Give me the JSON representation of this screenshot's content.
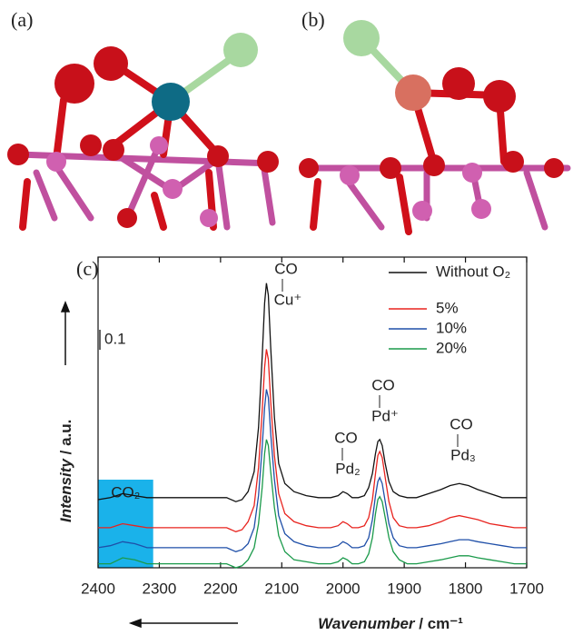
{
  "panels": {
    "a": {
      "label": "(a)"
    },
    "b": {
      "label": "(b)"
    }
  },
  "chart_data": {
    "type": "line",
    "panel_label": "(c)",
    "x_label": {
      "emphasis": "Wavenumber",
      "rest": " / cm⁻¹"
    },
    "y_label": {
      "emphasis": "Intensity",
      "rest": " / a.u."
    },
    "xlim": [
      2400,
      1700
    ],
    "xticks": [
      2400,
      2300,
      2200,
      2100,
      2000,
      1900,
      1800,
      1700
    ],
    "ylim": [
      0,
      1.55
    ],
    "scale_bar": 0.1,
    "highlight": {
      "label": "CO₂",
      "x": [
        2400,
        2310
      ],
      "color": "#1ab2ea"
    },
    "annotations": [
      {
        "top": "CO",
        "bottom": "Cu⁺"
      },
      {
        "top": "CO",
        "bottom": "Pd₂"
      },
      {
        "top": "CO",
        "bottom": "Pd⁺"
      },
      {
        "top": "CO",
        "bottom": "Pd₃"
      }
    ],
    "x": [
      2400,
      2380,
      2360,
      2340,
      2320,
      2300,
      2260,
      2220,
      2190,
      2175,
      2165,
      2155,
      2145,
      2138,
      2132,
      2128,
      2125,
      2122,
      2118,
      2112,
      2105,
      2095,
      2080,
      2060,
      2040,
      2020,
      2008,
      2000,
      1993,
      1985,
      1975,
      1965,
      1958,
      1952,
      1947,
      1943,
      1940,
      1936,
      1931,
      1925,
      1918,
      1908,
      1895,
      1880,
      1860,
      1840,
      1825,
      1810,
      1795,
      1780,
      1760,
      1740,
      1720,
      1700
    ],
    "series": [
      {
        "name": "Without O₂",
        "color": "#111111",
        "values": [
          0.34,
          0.35,
          0.37,
          0.36,
          0.35,
          0.35,
          0.35,
          0.35,
          0.35,
          0.33,
          0.34,
          0.38,
          0.48,
          0.7,
          1.05,
          1.32,
          1.42,
          1.36,
          1.1,
          0.75,
          0.52,
          0.42,
          0.38,
          0.36,
          0.35,
          0.35,
          0.36,
          0.38,
          0.37,
          0.35,
          0.35,
          0.36,
          0.4,
          0.47,
          0.57,
          0.63,
          0.64,
          0.61,
          0.52,
          0.43,
          0.38,
          0.36,
          0.35,
          0.35,
          0.37,
          0.39,
          0.41,
          0.42,
          0.41,
          0.39,
          0.37,
          0.35,
          0.35,
          0.35
        ]
      },
      {
        "name": "5%",
        "color": "#e8231e",
        "values": [
          0.2,
          0.2,
          0.22,
          0.21,
          0.2,
          0.2,
          0.2,
          0.2,
          0.2,
          0.18,
          0.19,
          0.23,
          0.31,
          0.5,
          0.78,
          1.0,
          1.09,
          1.04,
          0.83,
          0.56,
          0.37,
          0.27,
          0.23,
          0.21,
          0.2,
          0.2,
          0.21,
          0.23,
          0.22,
          0.2,
          0.2,
          0.21,
          0.25,
          0.34,
          0.47,
          0.56,
          0.58,
          0.55,
          0.45,
          0.33,
          0.25,
          0.21,
          0.2,
          0.2,
          0.21,
          0.23,
          0.25,
          0.26,
          0.25,
          0.24,
          0.22,
          0.21,
          0.2,
          0.2
        ]
      },
      {
        "name": "10%",
        "color": "#1f4fa8",
        "values": [
          0.1,
          0.11,
          0.13,
          0.12,
          0.1,
          0.1,
          0.1,
          0.1,
          0.1,
          0.08,
          0.09,
          0.12,
          0.2,
          0.36,
          0.6,
          0.8,
          0.89,
          0.85,
          0.67,
          0.44,
          0.26,
          0.17,
          0.13,
          0.11,
          0.1,
          0.1,
          0.11,
          0.13,
          0.12,
          0.1,
          0.1,
          0.11,
          0.15,
          0.24,
          0.36,
          0.43,
          0.45,
          0.42,
          0.33,
          0.22,
          0.15,
          0.11,
          0.1,
          0.1,
          0.11,
          0.12,
          0.13,
          0.14,
          0.14,
          0.13,
          0.12,
          0.11,
          0.1,
          0.1
        ]
      },
      {
        "name": "20%",
        "color": "#1a9a4a",
        "values": [
          0.02,
          0.02,
          0.05,
          0.04,
          0.02,
          0.02,
          0.02,
          0.02,
          0.02,
          0,
          0.01,
          0.04,
          0.1,
          0.22,
          0.4,
          0.57,
          0.64,
          0.61,
          0.48,
          0.3,
          0.16,
          0.08,
          0.04,
          0.03,
          0.02,
          0.02,
          0.03,
          0.05,
          0.04,
          0.02,
          0.02,
          0.03,
          0.07,
          0.15,
          0.27,
          0.34,
          0.355,
          0.33,
          0.25,
          0.15,
          0.08,
          0.04,
          0.02,
          0.02,
          0.03,
          0.04,
          0.05,
          0.06,
          0.06,
          0.05,
          0.04,
          0.03,
          0.02,
          0.02
        ]
      }
    ]
  }
}
